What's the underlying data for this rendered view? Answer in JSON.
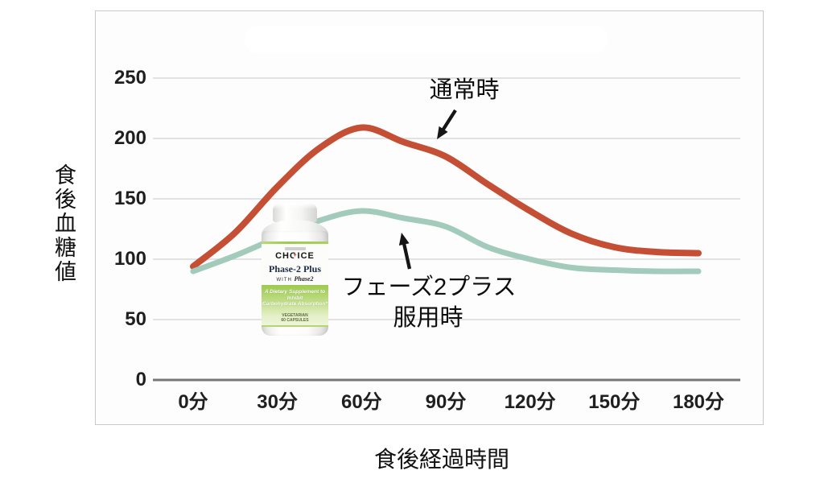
{
  "chart_data": {
    "type": "line",
    "title": "",
    "xlabel": "食後経過時間",
    "ylabel": "食後血糖値",
    "xlim_minutes": [
      0,
      180
    ],
    "ylim": [
      0,
      250
    ],
    "grid": true,
    "x_tick_minutes": [
      0,
      30,
      60,
      90,
      120,
      150,
      180
    ],
    "x_tick_labels": [
      "0分",
      "30分",
      "60分",
      "90分",
      "120分",
      "150分",
      "180分"
    ],
    "y_tick_values": [
      250,
      200,
      150,
      100,
      50,
      0
    ],
    "y_tick_labels": [
      "250",
      "200",
      "150",
      "100",
      "50",
      "0"
    ],
    "series": [
      {
        "name": "通常時",
        "color": "#c44f35",
        "stroke_width": 8,
        "x": [
          0,
          15,
          30,
          45,
          60,
          75,
          90,
          105,
          120,
          135,
          150,
          165,
          180
        ],
        "values": [
          94,
          122,
          160,
          192,
          209,
          197,
          185,
          162,
          140,
          121,
          110,
          106,
          105
        ]
      },
      {
        "name": "フェーズ2プラス服用時",
        "color": "#a2cbbc",
        "stroke_width": 7,
        "x": [
          0,
          15,
          30,
          45,
          60,
          75,
          90,
          105,
          120,
          135,
          150,
          165,
          180
        ],
        "values": [
          90,
          103,
          118,
          132,
          140,
          134,
          127,
          110,
          100,
          93,
          91,
          90,
          90
        ]
      }
    ],
    "annotations": {
      "normal": "通常時",
      "phase2_line1": "フェーズ2プラス",
      "phase2_line2": "服用時"
    }
  },
  "product": {
    "brand": "CHOICE",
    "name": "Phase-2 Plus",
    "with_label": "WITH",
    "with_script": "Phase2",
    "desc_line1": "A Dietary Supplement to Inhibit",
    "desc_line2": "Carbohydrate Absorption*",
    "tiny_line1": "VEGETARIAN",
    "tiny_line2": "60 CAPSULES"
  },
  "colors": {
    "grid": "#d9d9d9",
    "axis": "#777777",
    "arrow": "#151515",
    "frame_border": "#c9c9c9"
  }
}
